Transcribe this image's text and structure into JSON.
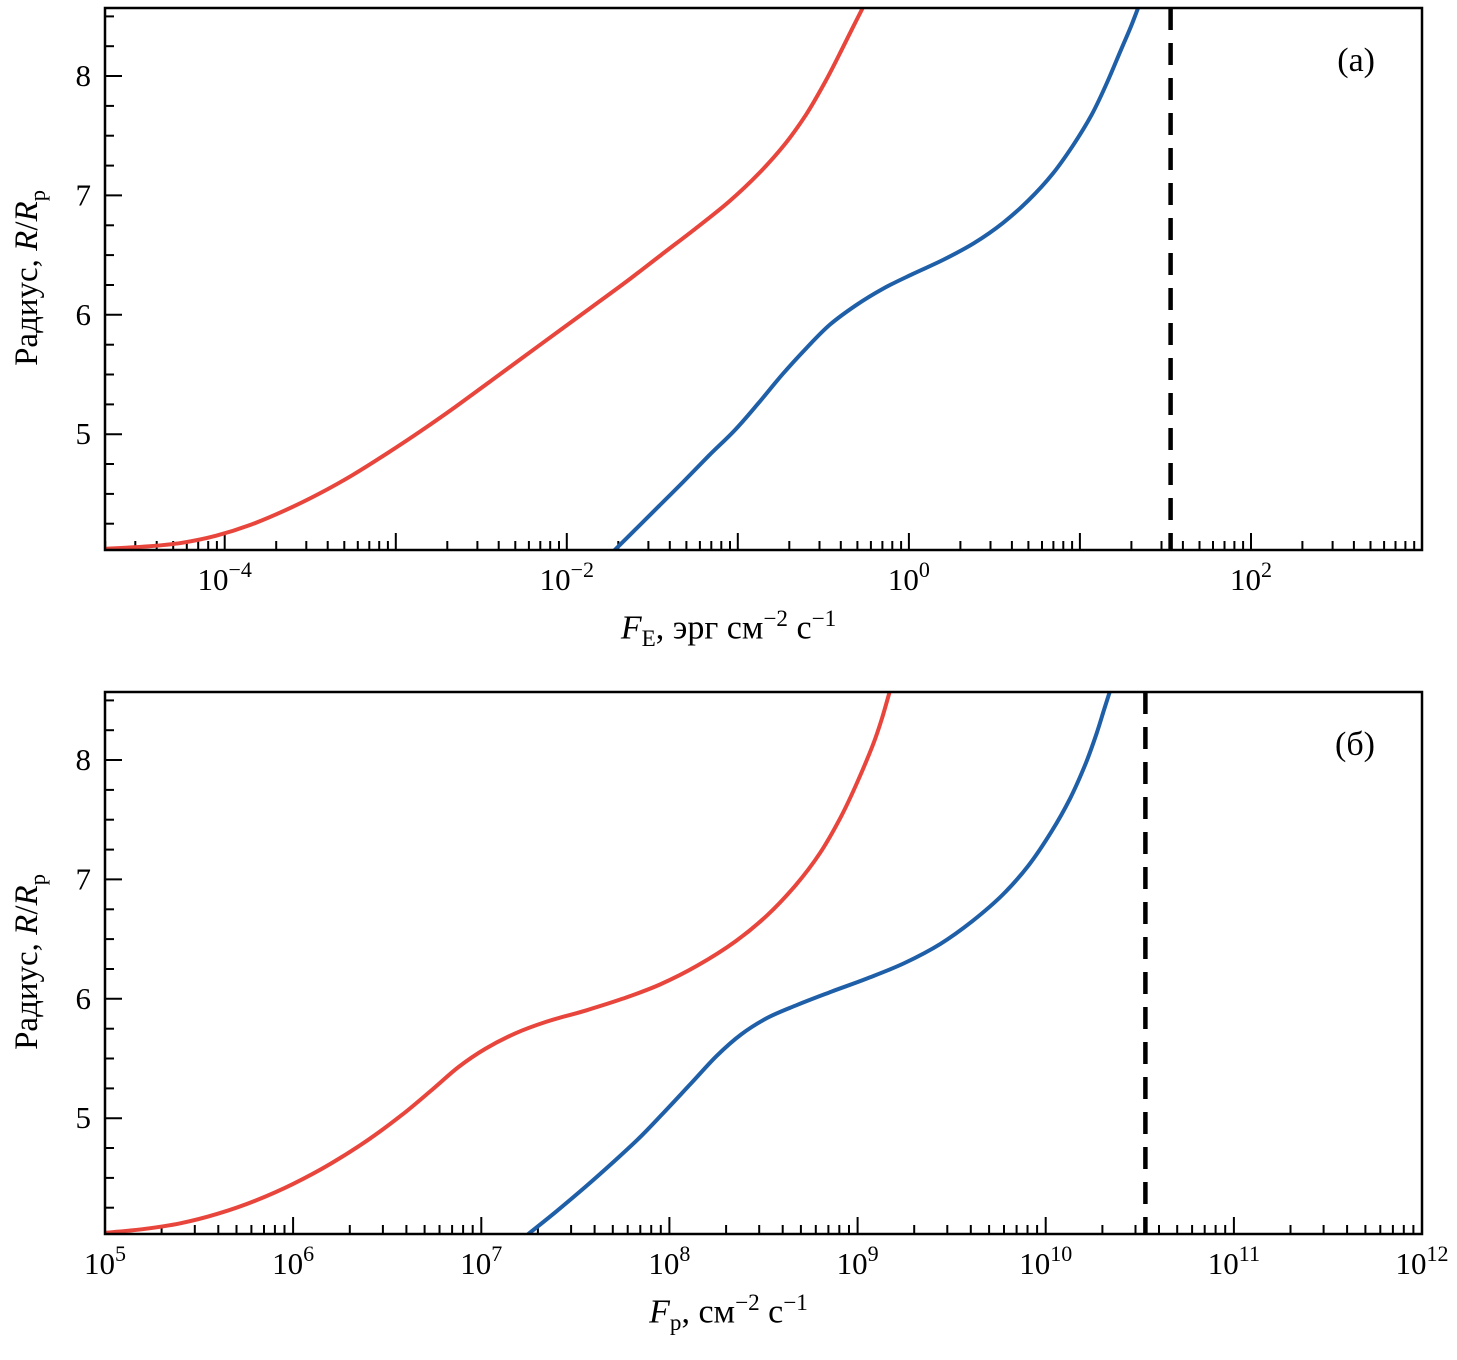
{
  "colors": {
    "red_curve": "#e8463d",
    "blue_curve": "#1f5fa8",
    "dashed_line": "#000000",
    "frame": "#000000"
  },
  "chart_data": [
    {
      "type": "line",
      "panel_label": "(а)",
      "x_scale": "log10",
      "xlabel_text": "F_E, эрг см^−2 с^−1",
      "ylabel_text": "Радиус, R/R_p",
      "xlabel_parts": {
        "var": "F",
        "var_sub": "E",
        "mid": ", эрг см",
        "exp1": "−2",
        "mid2": " с",
        "exp2": "−1"
      },
      "ylabel_parts": {
        "pre": "Радиус, ",
        "r1": "R",
        "slash": "/",
        "r2": "R",
        "sub": "p"
      },
      "xlim_log": [
        -4.7,
        3.0
      ],
      "ylim": [
        4.03,
        8.57
      ],
      "xticks_labeled_exp": [
        -4,
        -2,
        0,
        2
      ],
      "xticks_unlabeled_exp": [
        -3,
        -1,
        1
      ],
      "yticks": [
        5,
        6,
        7,
        8
      ],
      "y_minor_step": 0.25,
      "grid": false,
      "vline_log": 1.53,
      "series": [
        {
          "name": "red-curve",
          "color": "#e8463d",
          "points_logx_y": [
            [
              -4.7,
              4.04
            ],
            [
              -4.45,
              4.06
            ],
            [
              -4.25,
              4.09
            ],
            [
              -4.05,
              4.15
            ],
            [
              -3.85,
              4.24
            ],
            [
              -3.65,
              4.36
            ],
            [
              -3.45,
              4.5
            ],
            [
              -3.25,
              4.66
            ],
            [
              -3.05,
              4.84
            ],
            [
              -2.85,
              5.03
            ],
            [
              -2.65,
              5.23
            ],
            [
              -2.45,
              5.44
            ],
            [
              -2.25,
              5.65
            ],
            [
              -2.05,
              5.86
            ],
            [
              -1.85,
              6.07
            ],
            [
              -1.65,
              6.28
            ],
            [
              -1.45,
              6.5
            ],
            [
              -1.25,
              6.72
            ],
            [
              -1.05,
              6.95
            ],
            [
              -0.88,
              7.18
            ],
            [
              -0.73,
              7.42
            ],
            [
              -0.6,
              7.68
            ],
            [
              -0.49,
              7.95
            ],
            [
              -0.4,
              8.2
            ],
            [
              -0.33,
              8.4
            ],
            [
              -0.27,
              8.57
            ]
          ]
        },
        {
          "name": "blue-curve",
          "color": "#1f5fa8",
          "points_logx_y": [
            [
              -1.72,
              4.03
            ],
            [
              -1.6,
              4.2
            ],
            [
              -1.46,
              4.4
            ],
            [
              -1.32,
              4.6
            ],
            [
              -1.17,
              4.82
            ],
            [
              -1.02,
              5.03
            ],
            [
              -0.88,
              5.26
            ],
            [
              -0.74,
              5.5
            ],
            [
              -0.6,
              5.72
            ],
            [
              -0.46,
              5.92
            ],
            [
              -0.31,
              6.08
            ],
            [
              -0.15,
              6.22
            ],
            [
              0.02,
              6.34
            ],
            [
              0.2,
              6.46
            ],
            [
              0.38,
              6.6
            ],
            [
              0.55,
              6.77
            ],
            [
              0.7,
              6.96
            ],
            [
              0.84,
              7.18
            ],
            [
              0.96,
              7.42
            ],
            [
              1.07,
              7.68
            ],
            [
              1.16,
              7.95
            ],
            [
              1.24,
              8.22
            ],
            [
              1.3,
              8.42
            ],
            [
              1.34,
              8.57
            ]
          ]
        }
      ]
    },
    {
      "type": "line",
      "panel_label": "(б)",
      "x_scale": "log10",
      "xlabel_text": "F_p, см^−2 с^−1",
      "ylabel_text": "Радиус, R/R_p",
      "xlabel_parts": {
        "var": "F",
        "var_sub": "p",
        "mid": ", см",
        "exp1": "−2",
        "mid2": " с",
        "exp2": "−1"
      },
      "ylabel_parts": {
        "pre": "Радиус, ",
        "r1": "R",
        "slash": "/",
        "r2": "R",
        "sub": "p"
      },
      "xlim_log": [
        5.0,
        12.0
      ],
      "ylim": [
        4.03,
        8.57
      ],
      "xticks_labeled_exp": [
        5,
        6,
        7,
        8,
        9,
        10,
        11,
        12
      ],
      "xticks_unlabeled_exp": [],
      "yticks": [
        5,
        6,
        7,
        8
      ],
      "y_minor_step": 0.25,
      "grid": false,
      "vline_log": 10.53,
      "series": [
        {
          "name": "red-curve",
          "color": "#e8463d",
          "points_logx_y": [
            [
              5.0,
              4.04
            ],
            [
              5.2,
              4.07
            ],
            [
              5.4,
              4.12
            ],
            [
              5.6,
              4.2
            ],
            [
              5.8,
              4.31
            ],
            [
              6.0,
              4.45
            ],
            [
              6.2,
              4.62
            ],
            [
              6.4,
              4.82
            ],
            [
              6.58,
              5.03
            ],
            [
              6.74,
              5.24
            ],
            [
              6.88,
              5.43
            ],
            [
              7.02,
              5.58
            ],
            [
              7.18,
              5.71
            ],
            [
              7.35,
              5.81
            ],
            [
              7.55,
              5.9
            ],
            [
              7.75,
              6.0
            ],
            [
              7.95,
              6.12
            ],
            [
              8.15,
              6.28
            ],
            [
              8.35,
              6.48
            ],
            [
              8.52,
              6.7
            ],
            [
              8.67,
              6.95
            ],
            [
              8.8,
              7.22
            ],
            [
              8.91,
              7.52
            ],
            [
              9.0,
              7.82
            ],
            [
              9.08,
              8.12
            ],
            [
              9.13,
              8.35
            ],
            [
              9.17,
              8.57
            ]
          ]
        },
        {
          "name": "blue-curve",
          "color": "#1f5fa8",
          "points_logx_y": [
            [
              7.25,
              4.03
            ],
            [
              7.4,
              4.22
            ],
            [
              7.55,
              4.42
            ],
            [
              7.7,
              4.63
            ],
            [
              7.85,
              4.85
            ],
            [
              7.99,
              5.08
            ],
            [
              8.12,
              5.3
            ],
            [
              8.25,
              5.52
            ],
            [
              8.38,
              5.7
            ],
            [
              8.52,
              5.84
            ],
            [
              8.68,
              5.95
            ],
            [
              8.86,
              6.06
            ],
            [
              9.05,
              6.17
            ],
            [
              9.25,
              6.3
            ],
            [
              9.44,
              6.46
            ],
            [
              9.61,
              6.65
            ],
            [
              9.77,
              6.87
            ],
            [
              9.91,
              7.12
            ],
            [
              10.03,
              7.4
            ],
            [
              10.13,
              7.68
            ],
            [
              10.21,
              7.96
            ],
            [
              10.27,
              8.22
            ],
            [
              10.31,
              8.42
            ],
            [
              10.34,
              8.57
            ]
          ]
        }
      ]
    }
  ]
}
